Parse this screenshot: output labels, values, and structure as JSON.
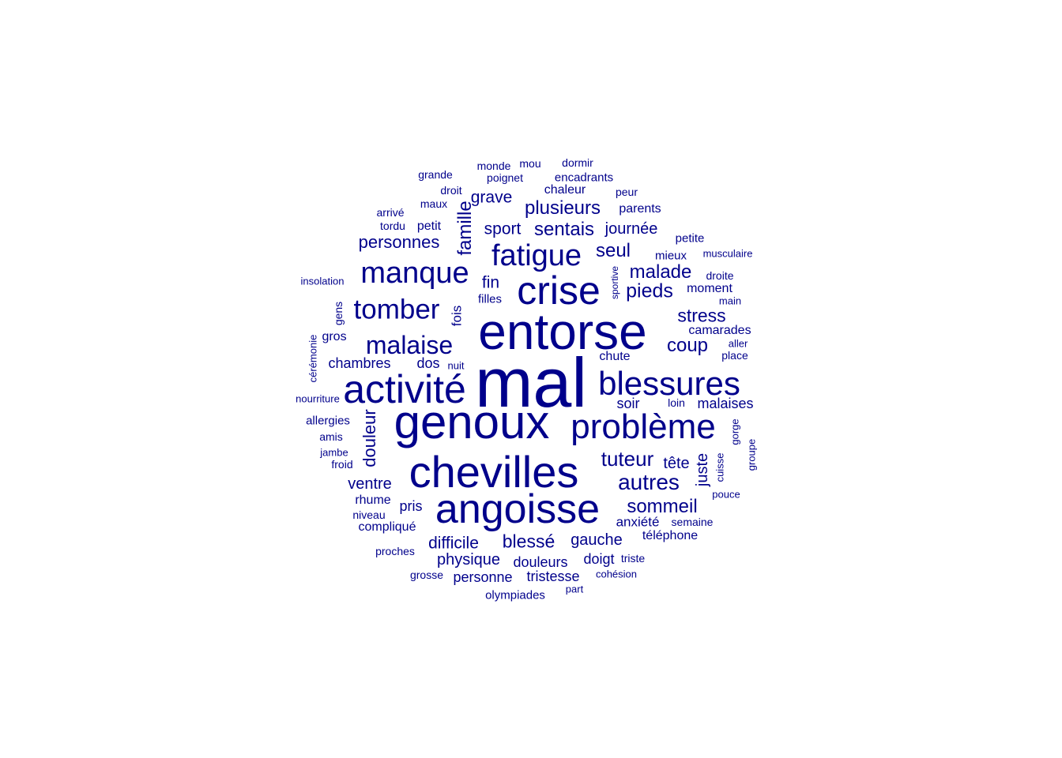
{
  "word_color": "#00008B",
  "background": "#FFFFFF",
  "words": [
    {
      "text": "mal",
      "freq": 10
    },
    {
      "text": "entorse",
      "freq": 8
    },
    {
      "text": "genoux",
      "freq": 7.5
    },
    {
      "text": "chevilles",
      "freq": 7
    },
    {
      "text": "angoisse",
      "freq": 7
    },
    {
      "text": "activité",
      "freq": 6.5
    },
    {
      "text": "crise",
      "freq": 6
    },
    {
      "text": "blessures",
      "freq": 5.5
    },
    {
      "text": "problème",
      "freq": 5.5
    },
    {
      "text": "fatigue",
      "freq": 5
    },
    {
      "text": "manque",
      "freq": 5
    },
    {
      "text": "tomber",
      "freq": 4.5
    },
    {
      "text": "malaise",
      "freq": 4.5
    },
    {
      "text": "tuteur",
      "freq": 3.5
    },
    {
      "text": "autres",
      "freq": 3.5
    },
    {
      "text": "sommeil",
      "freq": 3.5
    },
    {
      "text": "malade",
      "freq": 3.2
    },
    {
      "text": "pieds",
      "freq": 3.2
    },
    {
      "text": "stress",
      "freq": 3
    },
    {
      "text": "coup",
      "freq": 3
    },
    {
      "text": "plusieurs",
      "freq": 3
    },
    {
      "text": "sentais",
      "freq": 3
    },
    {
      "text": "personnes",
      "freq": 2.8
    },
    {
      "text": "seul",
      "freq": 3
    },
    {
      "text": "famille",
      "freq": 3
    },
    {
      "text": "blessé",
      "freq": 3
    },
    {
      "text": "difficile",
      "freq": 2.8
    },
    {
      "text": "douleur",
      "freq": 2.8
    },
    {
      "text": "sport",
      "freq": 2.8
    },
    {
      "text": "journée",
      "freq": 2.6
    },
    {
      "text": "grave",
      "freq": 2.6
    },
    {
      "text": "fin",
      "freq": 2.6
    },
    {
      "text": "juste",
      "freq": 2.6
    },
    {
      "text": "physique",
      "freq": 2.5
    },
    {
      "text": "gauche",
      "freq": 2.5
    },
    {
      "text": "ventre",
      "freq": 2.5
    },
    {
      "text": "tête",
      "freq": 2.5
    },
    {
      "text": "douleurs",
      "freq": 2.4
    },
    {
      "text": "doigt",
      "freq": 2.4
    },
    {
      "text": "chambres",
      "freq": 2.4
    },
    {
      "text": "dos",
      "freq": 2.4
    },
    {
      "text": "soir",
      "freq": 2.4
    },
    {
      "text": "malaises",
      "freq": 2.4
    },
    {
      "text": "fois",
      "freq": 2.2
    },
    {
      "text": "pris",
      "freq": 2.2
    },
    {
      "text": "personne",
      "freq": 2.2
    },
    {
      "text": "tristesse",
      "freq": 2.2
    },
    {
      "text": "anxiété",
      "freq": 2.2
    },
    {
      "text": "camarades",
      "freq": 2.2
    },
    {
      "text": "chute",
      "freq": 2.2
    },
    {
      "text": "petit",
      "freq": 2
    },
    {
      "text": "rhume",
      "freq": 2
    },
    {
      "text": "compliqué",
      "freq": 2
    },
    {
      "text": "gros",
      "freq": 2
    },
    {
      "text": "moment",
      "freq": 2
    },
    {
      "text": "parents",
      "freq": 2
    },
    {
      "text": "chaleur",
      "freq": 2
    },
    {
      "text": "téléphone",
      "freq": 2
    },
    {
      "text": "allergies",
      "freq": 2
    },
    {
      "text": "filles",
      "freq": 2
    },
    {
      "text": "petite",
      "freq": 2
    },
    {
      "text": "mieux",
      "freq": 2
    },
    {
      "text": "encadrants",
      "freq": 2
    },
    {
      "text": "olympiades",
      "freq": 2
    },
    {
      "text": "dormir",
      "freq": 1.8
    },
    {
      "text": "poignet",
      "freq": 1.8
    },
    {
      "text": "grande",
      "freq": 1.8
    },
    {
      "text": "monde",
      "freq": 1.8
    },
    {
      "text": "mou",
      "freq": 1.8
    },
    {
      "text": "gens",
      "freq": 1.8
    },
    {
      "text": "amis",
      "freq": 1.8
    },
    {
      "text": "froid",
      "freq": 1.8
    },
    {
      "text": "niveau",
      "freq": 1.8
    },
    {
      "text": "proches",
      "freq": 1.8
    },
    {
      "text": "grosse",
      "freq": 1.8
    },
    {
      "text": "place",
      "freq": 1.8
    },
    {
      "text": "droite",
      "freq": 1.8
    },
    {
      "text": "semaine",
      "freq": 1.8
    },
    {
      "text": "triste",
      "freq": 1.8
    },
    {
      "text": "loin",
      "freq": 1.8
    },
    {
      "text": "maux",
      "freq": 1.8
    },
    {
      "text": "droit",
      "freq": 1.8
    },
    {
      "text": "arrivé",
      "freq": 1.8
    },
    {
      "text": "tordu",
      "freq": 1.8
    },
    {
      "text": "peur",
      "freq": 1.8
    },
    {
      "text": "insolation",
      "freq": 1.6
    },
    {
      "text": "nourriture",
      "freq": 1.6
    },
    {
      "text": "cérémonie",
      "freq": 1.6
    },
    {
      "text": "jambe",
      "freq": 1.6
    },
    {
      "text": "nuit",
      "freq": 1.6
    },
    {
      "text": "musculaire",
      "freq": 1.6
    },
    {
      "text": "main",
      "freq": 1.6
    },
    {
      "text": "aller",
      "freq": 1.6
    },
    {
      "text": "gorge",
      "freq": 1.6
    },
    {
      "text": "cuisse",
      "freq": 1.6
    },
    {
      "text": "groupe",
      "freq": 1.6
    },
    {
      "text": "pouce",
      "freq": 1.6
    },
    {
      "text": "cohésion",
      "freq": 1.6
    },
    {
      "text": "part",
      "freq": 1.6
    },
    {
      "text": "sportive",
      "freq": 1.4
    }
  ]
}
